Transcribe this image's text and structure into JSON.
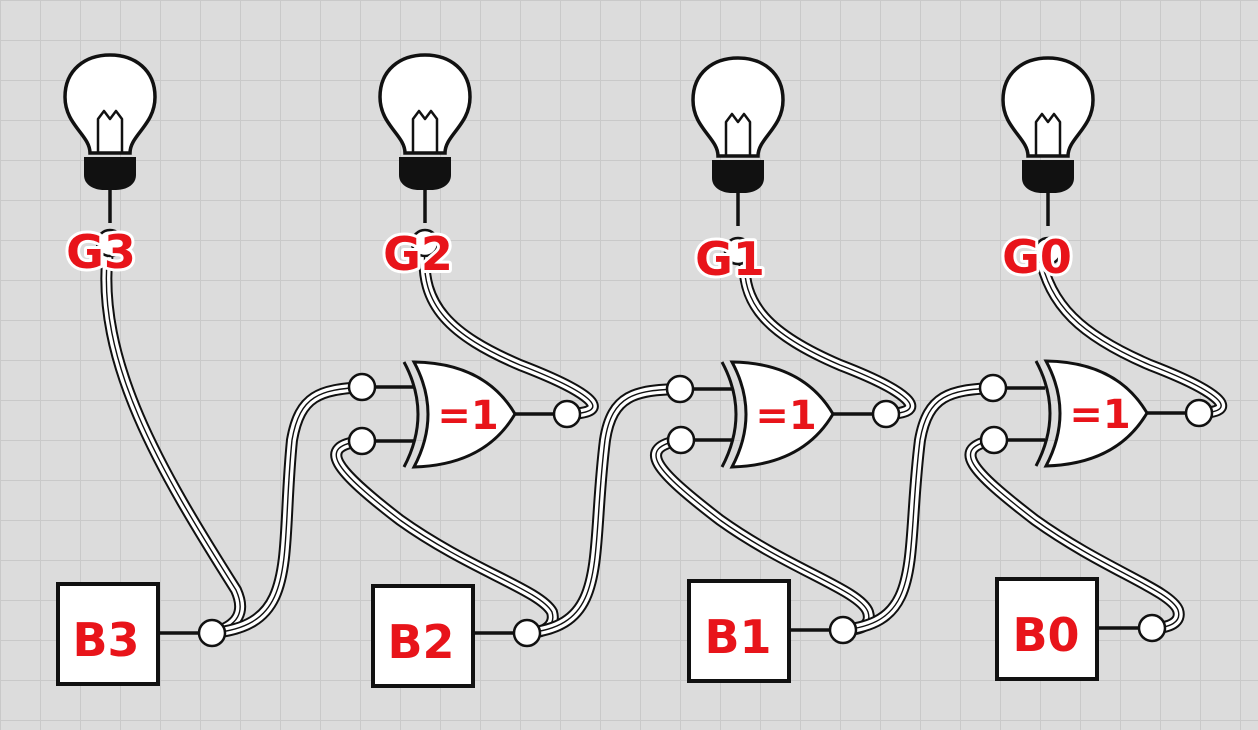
{
  "outputs": [
    {
      "id": "G3",
      "label": "G3"
    },
    {
      "id": "G2",
      "label": "G2"
    },
    {
      "id": "G1",
      "label": "G1"
    },
    {
      "id": "G0",
      "label": "G0"
    }
  ],
  "inputs": [
    {
      "id": "B3",
      "label": "B3"
    },
    {
      "id": "B2",
      "label": "B2"
    },
    {
      "id": "B1",
      "label": "B1"
    },
    {
      "id": "B0",
      "label": "B0"
    }
  ],
  "gates": [
    {
      "id": "xor-g2",
      "label": "=1"
    },
    {
      "id": "xor-g1",
      "label": "=1"
    },
    {
      "id": "xor-g0",
      "label": "=1"
    }
  ],
  "colors": {
    "label": "#e8141a",
    "background": "#dcdcdc",
    "grid": "#c9c9c9"
  }
}
